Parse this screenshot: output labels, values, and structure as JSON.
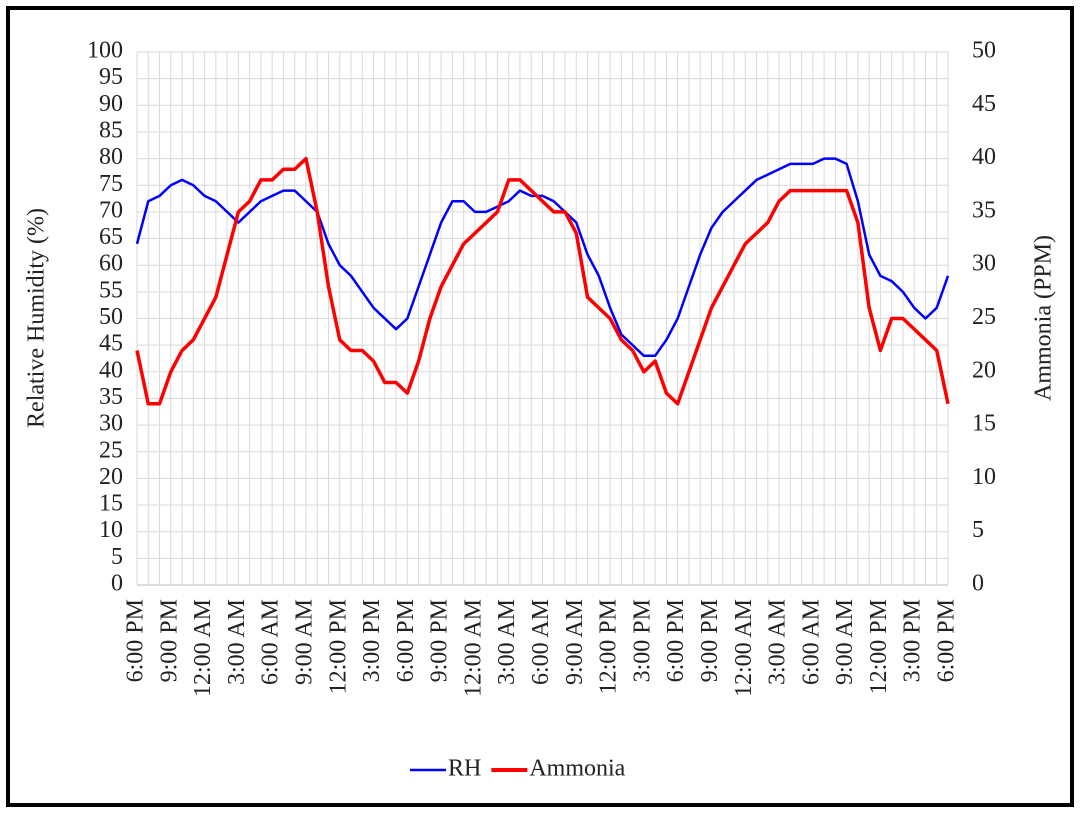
{
  "chart_data": {
    "type": "line",
    "y_label": "Relative Humidity (%)",
    "y2_label": "Ammonia (PPM)",
    "categories": [
      "6:00 PM",
      null,
      null,
      "9:00 PM",
      null,
      null,
      "12:00 AM",
      null,
      null,
      "3:00 AM",
      null,
      null,
      "6:00 AM",
      null,
      null,
      "9:00 AM",
      null,
      null,
      "12:00 PM",
      null,
      null,
      "3:00 PM",
      null,
      null,
      "6:00 PM",
      null,
      null,
      "9:00 PM",
      null,
      null,
      "12:00 AM",
      null,
      null,
      "3:00 AM",
      null,
      null,
      "6:00 AM",
      null,
      null,
      "9:00 AM",
      null,
      null,
      "12:00 PM",
      null,
      null,
      "3:00 PM",
      null,
      null,
      "6:00 PM",
      null,
      null,
      "9:00 PM",
      null,
      null,
      "12:00 AM",
      null,
      null,
      "3:00 AM",
      null,
      null,
      "6:00 AM",
      null,
      null,
      "9:00 AM",
      null,
      null,
      "12:00 PM",
      null,
      null,
      "3:00 PM",
      null,
      null,
      "6:00 PM"
    ],
    "series": [
      {
        "name": "RH",
        "color": "#0000ff",
        "axis": "y",
        "values": [
          64,
          72,
          73,
          75,
          76,
          75,
          73,
          72,
          70,
          68,
          70,
          72,
          73,
          74,
          74,
          72,
          70,
          64,
          60,
          58,
          55,
          52,
          50,
          48,
          50,
          56,
          62,
          68,
          72,
          72,
          70,
          70,
          71,
          72,
          74,
          73,
          73,
          72,
          70,
          68,
          62,
          58,
          52,
          47,
          45,
          43,
          43,
          46,
          50,
          56,
          62,
          67,
          70,
          72,
          74,
          76,
          77,
          78,
          79,
          79,
          79,
          80,
          80,
          79,
          72,
          62,
          58,
          57,
          55,
          52,
          50,
          52,
          58
        ]
      },
      {
        "name": "Ammonia",
        "color": "#ff0000",
        "axis": "y2",
        "values": [
          22,
          17,
          17,
          20,
          22,
          23,
          25,
          27,
          31,
          35,
          36,
          38,
          38,
          39,
          39,
          40,
          35,
          28,
          23,
          22,
          22,
          21,
          19,
          19,
          18,
          21,
          25,
          28,
          30,
          32,
          33,
          34,
          35,
          38,
          38,
          37,
          36,
          35,
          35,
          33,
          27,
          26,
          25,
          23,
          22,
          20,
          21,
          18,
          17,
          20,
          23,
          26,
          28,
          30,
          32,
          33,
          34,
          36,
          37,
          37,
          37,
          37,
          37,
          37,
          34,
          26,
          22,
          25,
          25,
          24,
          23,
          22,
          17
        ]
      }
    ],
    "ylim": [
      0,
      100
    ],
    "yticks": [
      0,
      5,
      10,
      15,
      20,
      25,
      30,
      35,
      40,
      45,
      50,
      55,
      60,
      65,
      70,
      75,
      80,
      85,
      90,
      95,
      100
    ],
    "y2lim": [
      0,
      50
    ],
    "y2ticks": [
      0,
      5,
      10,
      15,
      20,
      25,
      30,
      35,
      40,
      45,
      50
    ],
    "grid": true,
    "legend": "bottom"
  }
}
